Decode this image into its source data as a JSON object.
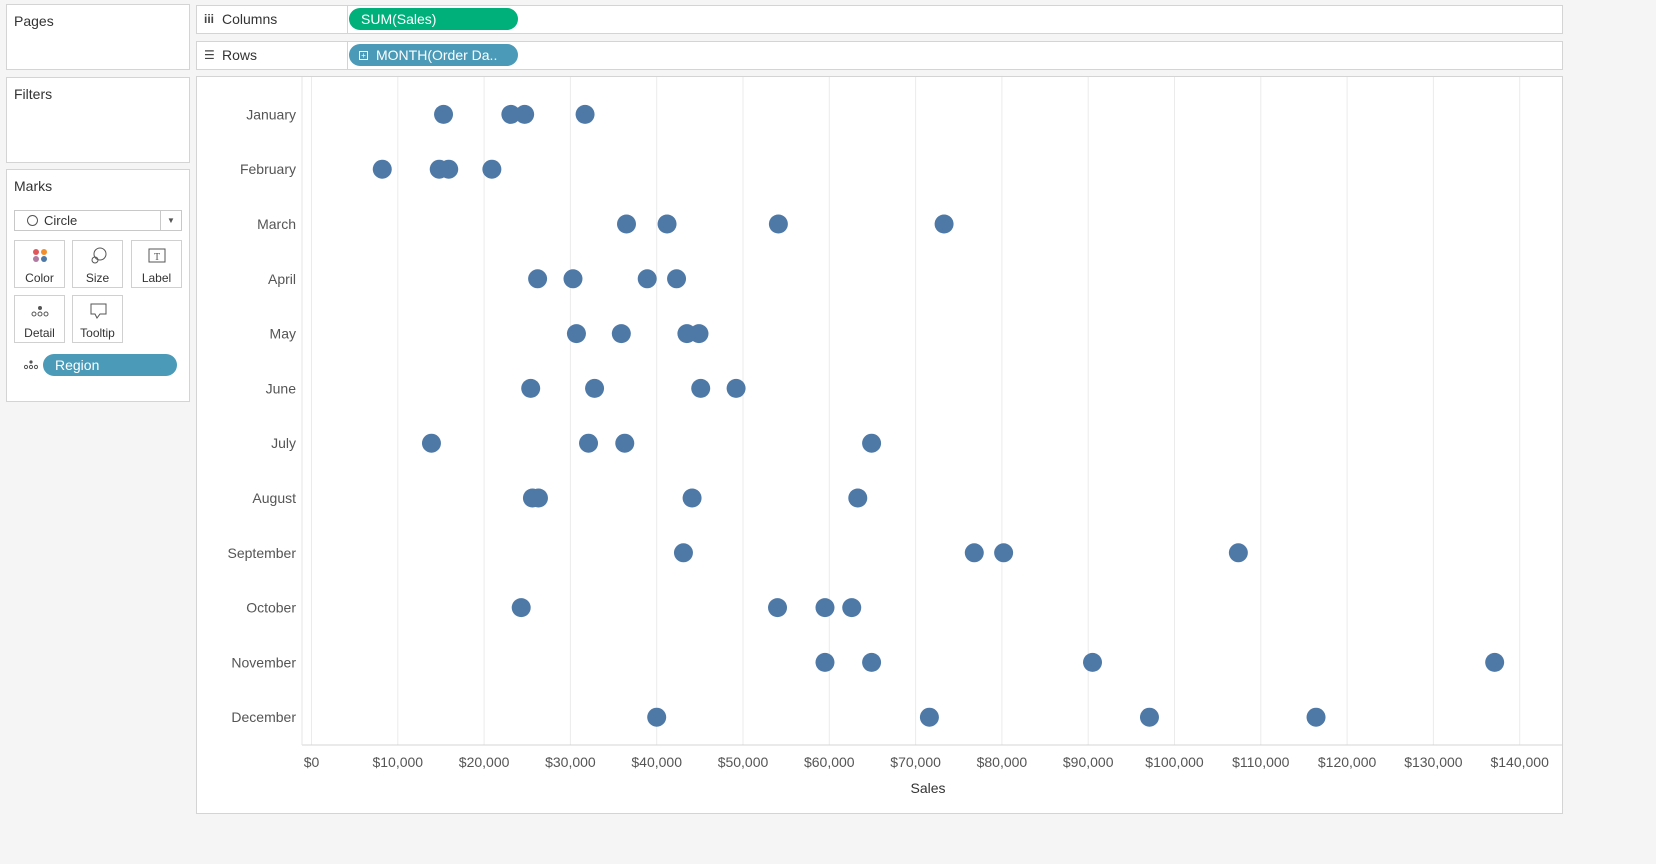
{
  "pages_card": {
    "title": "Pages"
  },
  "filters_card": {
    "title": "Filters"
  },
  "marks_card": {
    "title": "Marks",
    "mark_type": "Circle",
    "buttons": [
      {
        "label": "Color",
        "icon": "color-icon"
      },
      {
        "label": "Size",
        "icon": "size-icon"
      },
      {
        "label": "Label",
        "icon": "label-icon"
      },
      {
        "label": "Detail",
        "icon": "detail-icon"
      },
      {
        "label": "Tooltip",
        "icon": "tooltip-icon"
      }
    ],
    "detail_pill": "Region"
  },
  "shelves": {
    "columns": {
      "label": "Columns",
      "pill": "SUM(Sales)"
    },
    "rows": {
      "label": "Rows",
      "pill": "MONTH(Order Da.."
    }
  },
  "colors": {
    "mark": "#4e79a7",
    "green_pill": "#00b07a",
    "blue_pill": "#4a9ab8",
    "grid": "#ebebeb"
  },
  "chart_data": {
    "type": "scatter",
    "xlabel": "Sales",
    "ylabel": "",
    "xlim": [
      0,
      145000
    ],
    "x_ticks": [
      0,
      10000,
      20000,
      30000,
      40000,
      50000,
      60000,
      70000,
      80000,
      90000,
      100000,
      110000,
      120000,
      130000,
      140000
    ],
    "x_tick_labels": [
      "$0",
      "$10,000",
      "$20,000",
      "$30,000",
      "$40,000",
      "$50,000",
      "$60,000",
      "$70,000",
      "$80,000",
      "$90,000",
      "$100,000",
      "$110,000",
      "$120,000",
      "$130,000",
      "$140,000"
    ],
    "categories": [
      "January",
      "February",
      "March",
      "April",
      "May",
      "June",
      "July",
      "August",
      "September",
      "October",
      "November",
      "December"
    ],
    "grid": "vertical",
    "values": [
      [
        15300,
        23100,
        24700,
        31700
      ],
      [
        8200,
        14800,
        15900,
        20900
      ],
      [
        36500,
        41200,
        54100,
        73300
      ],
      [
        26200,
        30300,
        38900,
        42300
      ],
      [
        30700,
        35900,
        43500,
        44900
      ],
      [
        25400,
        32800,
        45100,
        49200
      ],
      [
        13900,
        32100,
        36300,
        64900
      ],
      [
        25600,
        26300,
        44100,
        63300
      ],
      [
        43100,
        76800,
        80200,
        107400
      ],
      [
        24300,
        54000,
        59500,
        62600
      ],
      [
        59500,
        64900,
        90500,
        137100
      ],
      [
        40000,
        71600,
        97100,
        116400
      ]
    ]
  }
}
